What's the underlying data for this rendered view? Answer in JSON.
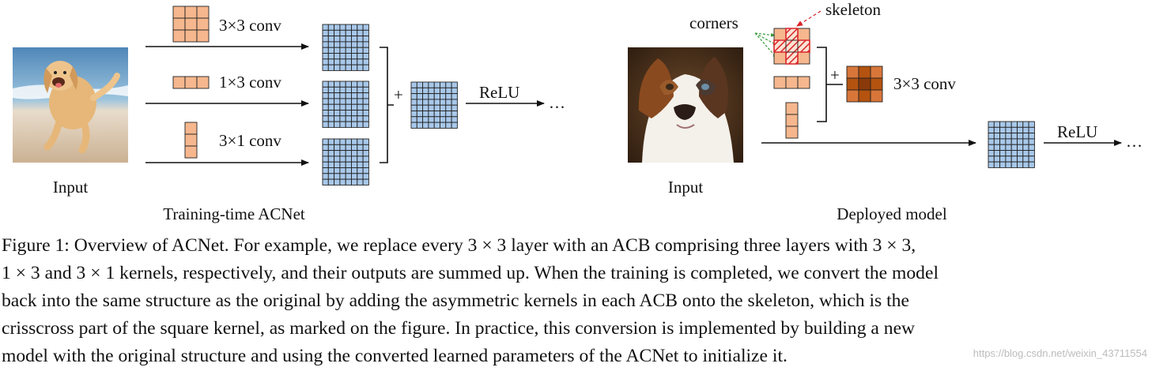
{
  "training": {
    "input_label": "Input",
    "kernels": [
      {
        "label": "3×3 conv"
      },
      {
        "label": "1×3 conv"
      },
      {
        "label": "3×1 conv"
      }
    ],
    "plus": "+",
    "relu": "ReLU",
    "ellipsis": "…",
    "subtitle": "Training-time ACNet"
  },
  "deployed": {
    "input_label": "Input",
    "annotation_corners": "corners",
    "annotation_skeleton": "skeleton",
    "plus": "+",
    "kernel_label": "3×3 conv",
    "relu": "ReLU",
    "ellipsis": "…",
    "subtitle": "Deployed model"
  },
  "caption": {
    "lines": [
      "Figure 1: Overview of ACNet. For example, we replace every 3 × 3 layer with an ACB comprising three layers with 3 × 3,",
      "1 × 3 and 3 × 1 kernels, respectively, and their outputs are summed up. When the training is completed, we convert the model",
      "back into the same structure as the original by adding the asymmetric kernels in each ACB onto the skeleton, which is the",
      "crisscross part of the square kernel, as marked on the figure. In practice, this conversion is implemented by building a new",
      "model with the original structure and using the converted learned parameters of the ACNet to initialize it."
    ]
  },
  "watermark": "https://blog.csdn.net/weixin_43711554",
  "colors": {
    "kernel_fill": "#f6b78e",
    "feature_fill": "#a8c8ea",
    "dark_kernel": "#b4530f",
    "mid_kernel": "#d8763a",
    "skeleton": "#d9262b"
  }
}
